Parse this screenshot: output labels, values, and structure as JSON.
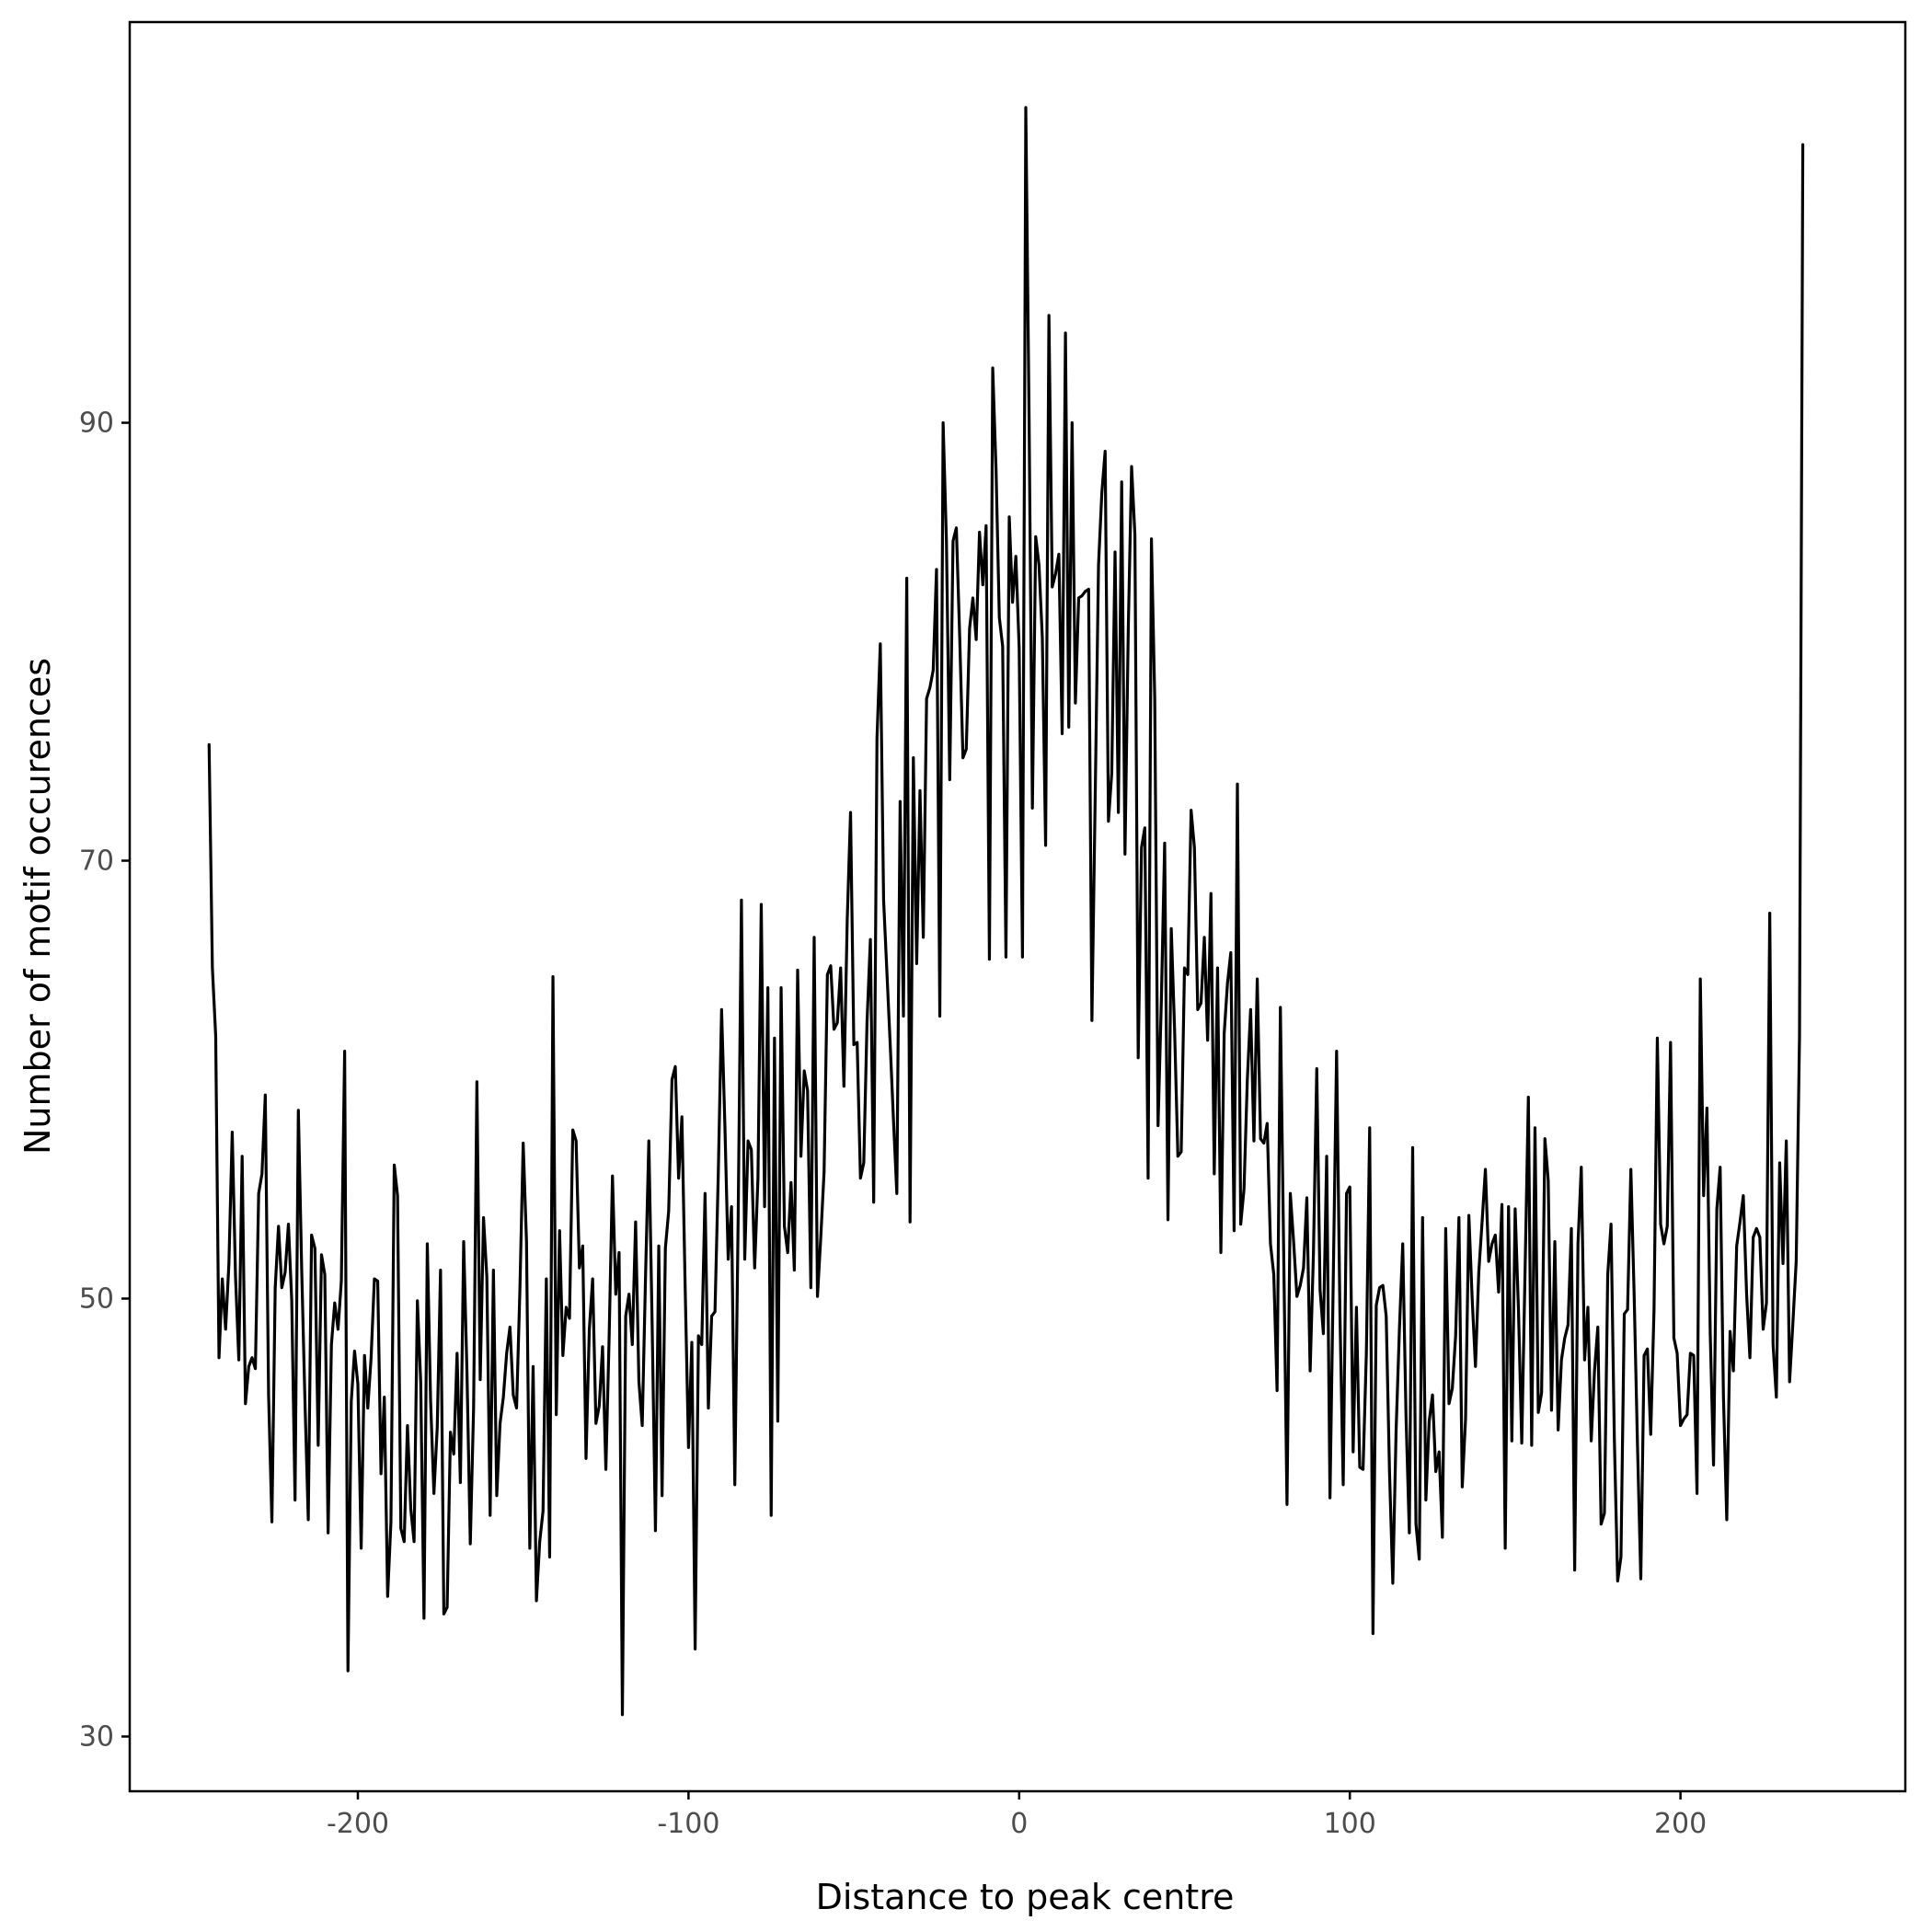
{
  "colors": {
    "line": "#000000",
    "axis": "#000000",
    "tick_text": "#4d4d4d",
    "background": "#ffffff"
  },
  "chart_data": {
    "type": "line",
    "title": "",
    "xlabel": "Distance to peak centre",
    "ylabel": "Number of motif occurences",
    "xlim": [
      -269,
      268
    ],
    "ylim": [
      27.5,
      108.3
    ],
    "xticks": [
      -200,
      -100,
      0,
      100,
      200
    ],
    "yticks": [
      30,
      50,
      70,
      90
    ],
    "xtick_labels": [
      "-200",
      "-100",
      "0",
      "100",
      "200"
    ],
    "ytick_labels": [
      "30",
      "50",
      "70",
      "90"
    ],
    "grid": false,
    "legend": "none",
    "x_start": -245,
    "x_step": 1,
    "y": [
      75.3,
      65.1,
      62.0,
      47.3,
      50.9,
      48.6,
      51.6,
      57.6,
      51.0,
      47.2,
      56.5,
      45.2,
      46.9,
      47.3,
      46.8,
      54.8,
      55.7,
      59.3,
      45.6,
      39.8,
      50.5,
      53.3,
      50.5,
      51.2,
      53.4,
      49.9,
      40.8,
      58.6,
      51.4,
      45.3,
      39.9,
      52.9,
      52.3,
      43.3,
      52.0,
      51.1,
      39.3,
      47.9,
      49.8,
      48.6,
      50.8,
      61.3,
      33.0,
      45.3,
      47.6,
      46.1,
      38.6,
      47.4,
      45.0,
      47.3,
      50.9,
      50.8,
      42.0,
      45.5,
      36.4,
      39.8,
      56.1,
      54.7,
      39.5,
      38.9,
      44.2,
      40.4,
      38.9,
      49.9,
      46.2,
      35.4,
      52.5,
      45.3,
      41.1,
      44.1,
      51.3,
      35.6,
      35.9,
      43.9,
      42.9,
      47.5,
      41.6,
      52.6,
      46.6,
      38.8,
      45.0,
      59.9,
      46.3,
      53.7,
      51.0,
      40.1,
      51.3,
      41.0,
      44.3,
      45.5,
      47.5,
      48.7,
      45.6,
      45.0,
      50.4,
      57.1,
      52.6,
      38.6,
      46.9,
      36.2,
      38.9,
      40.3,
      50.9,
      38.2,
      64.7,
      44.7,
      53.1,
      47.4,
      49.6,
      49.1,
      57.7,
      57.2,
      51.4,
      52.4,
      42.7,
      48.6,
      50.9,
      44.3,
      45.1,
      47.8,
      42.2,
      48.3,
      55.6,
      50.2,
      52.1,
      31.0,
      49.2,
      50.2,
      47.9,
      53.5,
      46.2,
      44.2,
      51.0,
      57.2,
      48.8,
      39.4,
      52.4,
      41.0,
      52.3,
      54.0,
      60.0,
      60.6,
      55.5,
      58.3,
      50.4,
      43.2,
      48.0,
      34.0,
      48.3,
      47.9,
      54.8,
      45.0,
      49.2,
      49.4,
      55.7,
      63.2,
      57.9,
      51.8,
      54.2,
      41.5,
      53.5,
      68.2,
      51.8,
      57.2,
      56.8,
      51.4,
      55.5,
      68.0,
      54.2,
      64.2,
      40.1,
      61.9,
      44.4,
      64.2,
      53.3,
      52.1,
      55.3,
      51.3,
      65.0,
      56.5,
      60.4,
      59.5,
      50.5,
      66.5,
      50.1,
      52.8,
      55.8,
      64.8,
      65.2,
      62.3,
      62.6,
      65.1,
      59.7,
      67.3,
      72.2,
      61.6,
      61.7,
      55.5,
      56.2,
      62.7,
      66.4,
      54.4,
      75.6,
      79.9,
      68.2,
      64.9,
      61.6,
      58.1,
      54.8,
      72.7,
      62.9,
      82.9,
      53.5,
      74.7,
      65.3,
      73.2,
      66.5,
      77.4,
      77.9,
      78.7,
      83.3,
      62.9,
      90.0,
      84.6,
      73.7,
      84.6,
      85.2,
      80.3,
      74.7,
      75.1,
      80.6,
      82.0,
      80.1,
      85.0,
      82.6,
      85.3,
      65.5,
      92.5,
      87.9,
      81.1,
      79.8,
      65.6,
      85.7,
      81.8,
      83.9,
      79.7,
      65.6,
      104.4,
      90.2,
      72.4,
      84.8,
      83.5,
      80.2,
      70.7,
      94.9,
      82.5,
      83.1,
      84.0,
      75.8,
      94.1,
      76.1,
      90.0,
      77.2,
      82.0,
      82.1,
      82.3,
      82.4,
      62.7,
      73.0,
      83.5,
      86.8,
      88.7,
      71.8,
      74.0,
      84.1,
      72.2,
      87.3,
      70.3,
      80.6,
      88.0,
      84.9,
      61.0,
      70.6,
      71.5,
      55.5,
      84.7,
      77.4,
      57.9,
      63.6,
      70.8,
      53.6,
      66.9,
      62.3,
      56.5,
      56.7,
      65.1,
      64.8,
      72.3,
      70.6,
      63.2,
      63.5,
      66.5,
      61.8,
      68.5,
      55.7,
      65.1,
      52.1,
      62.1,
      64.4,
      65.8,
      53.1,
      73.5,
      53.4,
      55.0,
      60.0,
      63.2,
      57.2,
      64.6,
      57.3,
      57.1,
      58.0,
      52.5,
      51.1,
      45.8,
      63.3,
      52.1,
      40.6,
      54.8,
      52.6,
      50.1,
      50.6,
      51.4,
      54.6,
      46.7,
      52.1,
      60.5,
      50.4,
      48.4,
      56.5,
      40.9,
      51.0,
      61.3,
      49.4,
      41.5,
      54.8,
      55.1,
      43.0,
      49.6,
      42.3,
      42.2,
      47.5,
      57.8,
      34.7,
      49.7,
      50.5,
      50.6,
      49.2,
      42.1,
      37.0,
      44.0,
      48.6,
      52.5,
      44.6,
      39.3,
      56.9,
      39.7,
      38.1,
      53.7,
      40.8,
      44.4,
      45.6,
      42.1,
      43.0,
      39.1,
      53.2,
      45.2,
      45.9,
      48.3,
      53.7,
      41.4,
      44.5,
      53.8,
      50.0,
      46.9,
      51.2,
      53.5,
      55.9,
      51.7,
      52.5,
      52.9,
      50.3,
      54.3,
      38.6,
      54.2,
      43.5,
      54.1,
      49.5,
      43.4,
      51.3,
      59.2,
      43.3,
      57.8,
      44.8,
      45.7,
      57.3,
      55.4,
      44.9,
      52.6,
      44.0,
      47.2,
      48.2,
      48.8,
      53.2,
      37.6,
      52.5,
      56.0,
      47.2,
      49.6,
      43.5,
      46.7,
      48.7,
      39.7,
      40.2,
      51.1,
      53.4,
      43.6,
      37.1,
      38.2,
      49.3,
      49.5,
      55.9,
      50.1,
      43.3,
      37.2,
      47.4,
      47.7,
      43.8,
      49.5,
      61.9,
      53.4,
      52.5,
      53.3,
      61.7,
      48.2,
      47.5,
      44.2,
      44.5,
      44.7,
      47.5,
      47.4,
      41.1,
      64.6,
      54.7,
      58.7,
      48.4,
      42.4,
      54.1,
      56.0,
      45.5,
      39.9,
      48.5,
      46.7,
      52.4,
      53.5,
      54.7,
      50.2,
      47.3,
      52.8,
      53.2,
      52.8,
      48.6,
      49.8,
      67.6,
      47.9,
      45.5,
      56.2,
      51.6,
      57.2,
      46.2,
      48.9,
      51.7,
      62.0,
      102.7
    ]
  }
}
